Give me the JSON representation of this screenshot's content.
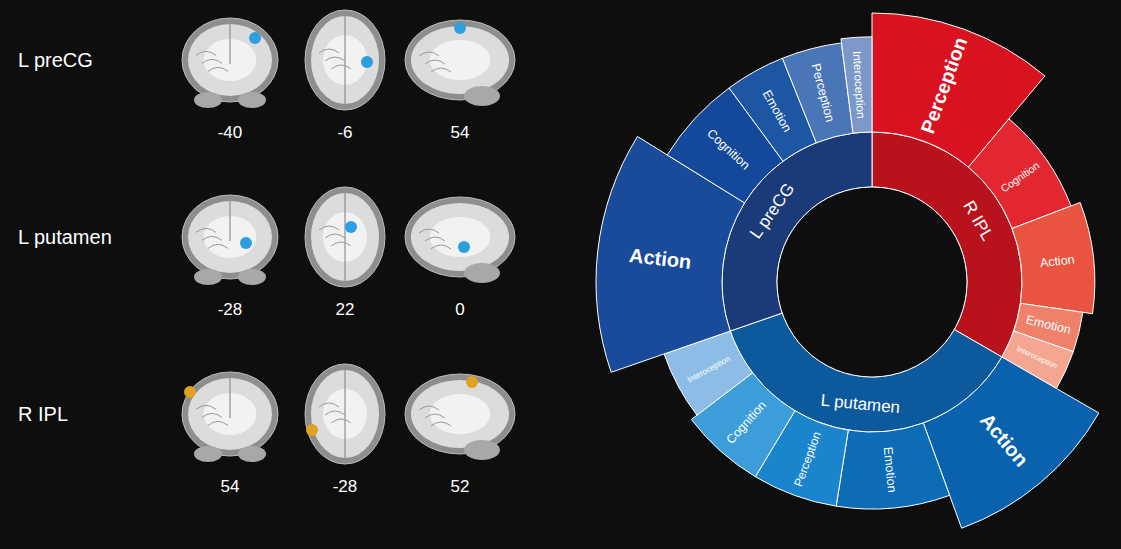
{
  "brain_slices": [
    {
      "region": "L preCG",
      "coordinates": [
        -40,
        -6,
        54
      ],
      "color": "#2c9fe0"
    },
    {
      "region": "L putamen",
      "coordinates": [
        -28,
        22,
        0
      ],
      "color": "#2c9fe0"
    },
    {
      "region": "R IPL",
      "coordinates": [
        54,
        -28,
        52
      ],
      "color": "#e0a224"
    }
  ],
  "chart_data": {
    "type": "sunburst",
    "series": [
      {
        "name": "R IPL",
        "color": "#b8121c",
        "categories": [
          "Perception",
          "Cognition",
          "Action",
          "Emotion",
          "Interoception"
        ],
        "values": [
          11,
          8,
          8,
          3,
          3
        ],
        "magnitudes": [
          85,
          45,
          52,
          45,
          45
        ],
        "colors": [
          "#d8121f",
          "#e22730",
          "#e8543f",
          "#ef806a",
          "#f4a690"
        ]
      },
      {
        "name": "L putamen",
        "color": "#0c5a9c",
        "categories": [
          "Action",
          "Emotion",
          "Perception",
          "Cognition",
          "Interoception"
        ],
        "values": [
          11,
          8,
          6,
          6,
          5
        ],
        "magnitudes": [
          80,
          55,
          55,
          55,
          50
        ],
        "colors": [
          "#0a62ae",
          "#0c6db6",
          "#1a85cc",
          "#3c9dd9",
          "#8dbde6"
        ]
      },
      {
        "name": "L preCG",
        "color": "#1b3a78",
        "categories": [
          "Action",
          "Cognition",
          "Emotion",
          "Perception",
          "Interoception"
        ],
        "values": [
          14,
          6,
          4,
          4,
          2
        ],
        "magnitudes": [
          90,
          65,
          65,
          65,
          68
        ],
        "colors": [
          "#1a4a9a",
          "#13489a",
          "#1d56a3",
          "#4a76b8",
          "#7b98c8"
        ]
      }
    ]
  }
}
